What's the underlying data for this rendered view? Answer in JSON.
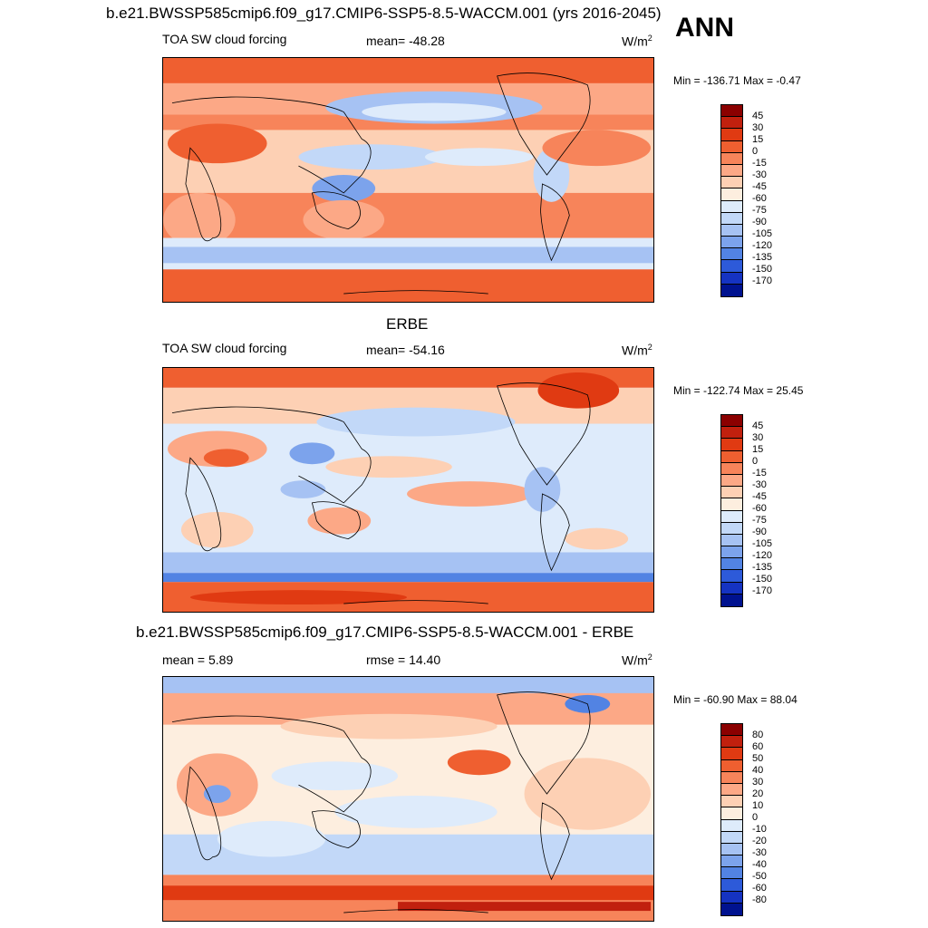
{
  "header": {
    "case_title": "b.e21.BWSSP585cmip6.f09_g17.CMIP6-SSP5-8.5-WACCM.001 (yrs 2016-2045)",
    "season": "ANN"
  },
  "panels": [
    {
      "title_above": "",
      "left_label": "TOA SW cloud forcing",
      "center_label": "mean= -48.28",
      "units": "W/m",
      "units_sup": "2",
      "minmax": "Min = -136.71 Max =  -0.47",
      "colorbar": {
        "labels": [
          "45",
          "30",
          "15",
          "0",
          "-15",
          "-30",
          "-45",
          "-60",
          "-75",
          "-90",
          "-105",
          "-120",
          "-135",
          "-150",
          "-170"
        ],
        "colors": [
          "#8b0000",
          "#c1200e",
          "#e03a12",
          "#ef5f30",
          "#f7845a",
          "#fca886",
          "#fdd0b4",
          "#fdeedf",
          "#deebfb",
          "#c2d8f8",
          "#a6c2f3",
          "#7ca3ec",
          "#5283e3",
          "#2d5ad9",
          "#1533c2",
          "#00128f"
        ]
      }
    },
    {
      "title_above": "ERBE",
      "left_label": "TOA SW cloud forcing",
      "center_label": "mean= -54.16",
      "units": "W/m",
      "units_sup": "2",
      "minmax": "Min = -122.74 Max =  25.45",
      "colorbar": {
        "labels": [
          "45",
          "30",
          "15",
          "0",
          "-15",
          "-30",
          "-45",
          "-60",
          "-75",
          "-90",
          "-105",
          "-120",
          "-135",
          "-150",
          "-170"
        ],
        "colors": [
          "#8b0000",
          "#c1200e",
          "#e03a12",
          "#ef5f30",
          "#f7845a",
          "#fca886",
          "#fdd0b4",
          "#fdeedf",
          "#deebfb",
          "#c2d8f8",
          "#a6c2f3",
          "#7ca3ec",
          "#5283e3",
          "#2d5ad9",
          "#1533c2",
          "#00128f"
        ]
      }
    },
    {
      "title_above": "b.e21.BWSSP585cmip6.f09_g17.CMIP6-SSP5-8.5-WACCM.001 - ERBE",
      "left_label": "mean =   5.89",
      "center_label": "rmse =  14.40",
      "units": "W/m",
      "units_sup": "2",
      "minmax": "Min = -60.90 Max =  88.04",
      "colorbar": {
        "labels": [
          "80",
          "60",
          "50",
          "40",
          "30",
          "20",
          "10",
          "0",
          "-10",
          "-20",
          "-30",
          "-40",
          "-50",
          "-60",
          "-80"
        ],
        "colors": [
          "#8b0000",
          "#c1200e",
          "#e03a12",
          "#ef5f30",
          "#f7845a",
          "#fca886",
          "#fdd0b4",
          "#fdeedf",
          "#deebfb",
          "#c2d8f8",
          "#a6c2f3",
          "#7ca3ec",
          "#5283e3",
          "#2d5ad9",
          "#1533c2",
          "#00128f"
        ]
      }
    }
  ]
}
